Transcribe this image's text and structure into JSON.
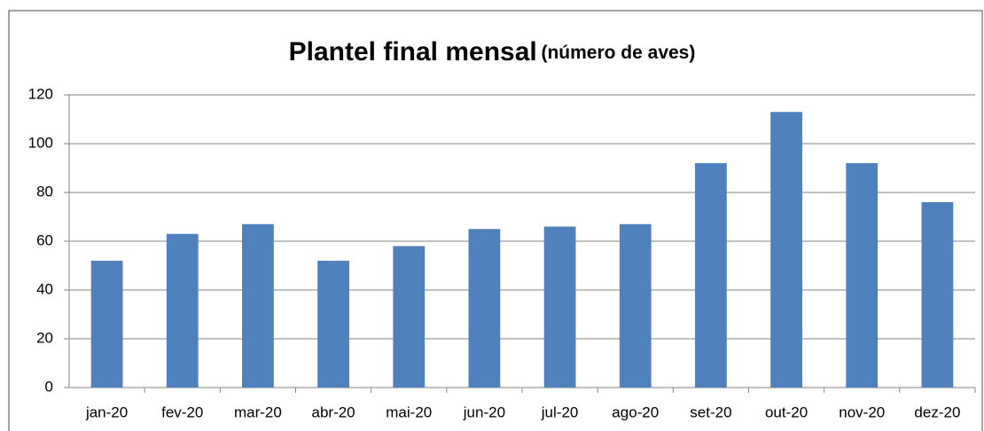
{
  "chart_data": {
    "type": "bar",
    "title": "Plantel final mensal",
    "subtitle": "(número de aves)",
    "categories": [
      "jan-20",
      "fev-20",
      "mar-20",
      "abr-20",
      "mai-20",
      "jun-20",
      "jul-20",
      "ago-20",
      "set-20",
      "out-20",
      "nov-20",
      "dez-20"
    ],
    "values": [
      52,
      63,
      67,
      52,
      58,
      65,
      66,
      67,
      92,
      113,
      92,
      76
    ],
    "color": "#4f81bd",
    "ylim": [
      0,
      120
    ],
    "yticks": [
      0,
      20,
      40,
      60,
      80,
      100,
      120
    ],
    "grid": true
  }
}
